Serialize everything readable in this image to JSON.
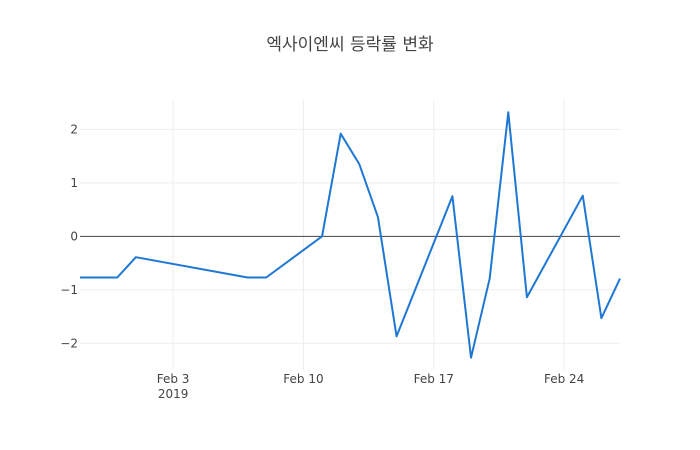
{
  "chart_data": {
    "type": "line",
    "title": "엑사이엔씨 등락률 변화",
    "xlabel": "",
    "ylabel": "",
    "x_ticks": [
      {
        "date": "2019-02-03",
        "label": "Feb 3",
        "sublabel": "2019"
      },
      {
        "date": "2019-02-10",
        "label": "Feb 10",
        "sublabel": ""
      },
      {
        "date": "2019-02-17",
        "label": "Feb 17",
        "sublabel": ""
      },
      {
        "date": "2019-02-24",
        "label": "Feb 24",
        "sublabel": ""
      }
    ],
    "y_ticks": [
      {
        "value": 2,
        "label": "2"
      },
      {
        "value": 1,
        "label": "1"
      },
      {
        "value": 0,
        "label": "0"
      },
      {
        "value": -1,
        "label": "−1"
      },
      {
        "value": -2,
        "label": "−2"
      }
    ],
    "xlim": [
      "2019-01-29",
      "2019-02-27"
    ],
    "ylim": [
      -2.5,
      2.55
    ],
    "grid": true,
    "color": "#1f77d4",
    "series": [
      {
        "x": [
          "2019-01-29",
          "2019-01-30",
          "2019-01-31",
          "2019-02-01",
          "2019-02-07",
          "2019-02-08",
          "2019-02-11",
          "2019-02-12",
          "2019-02-13",
          "2019-02-14",
          "2019-02-15",
          "2019-02-18",
          "2019-02-19",
          "2019-02-20",
          "2019-02-21",
          "2019-02-22",
          "2019-02-25",
          "2019-02-26",
          "2019-02-27"
        ],
        "y": [
          -0.77,
          -0.77,
          -0.77,
          -0.39,
          -0.77,
          -0.77,
          0.0,
          1.92,
          1.35,
          0.36,
          -1.87,
          0.75,
          -2.27,
          -0.79,
          2.32,
          -1.14,
          0.76,
          -1.53,
          -0.79
        ]
      }
    ]
  }
}
